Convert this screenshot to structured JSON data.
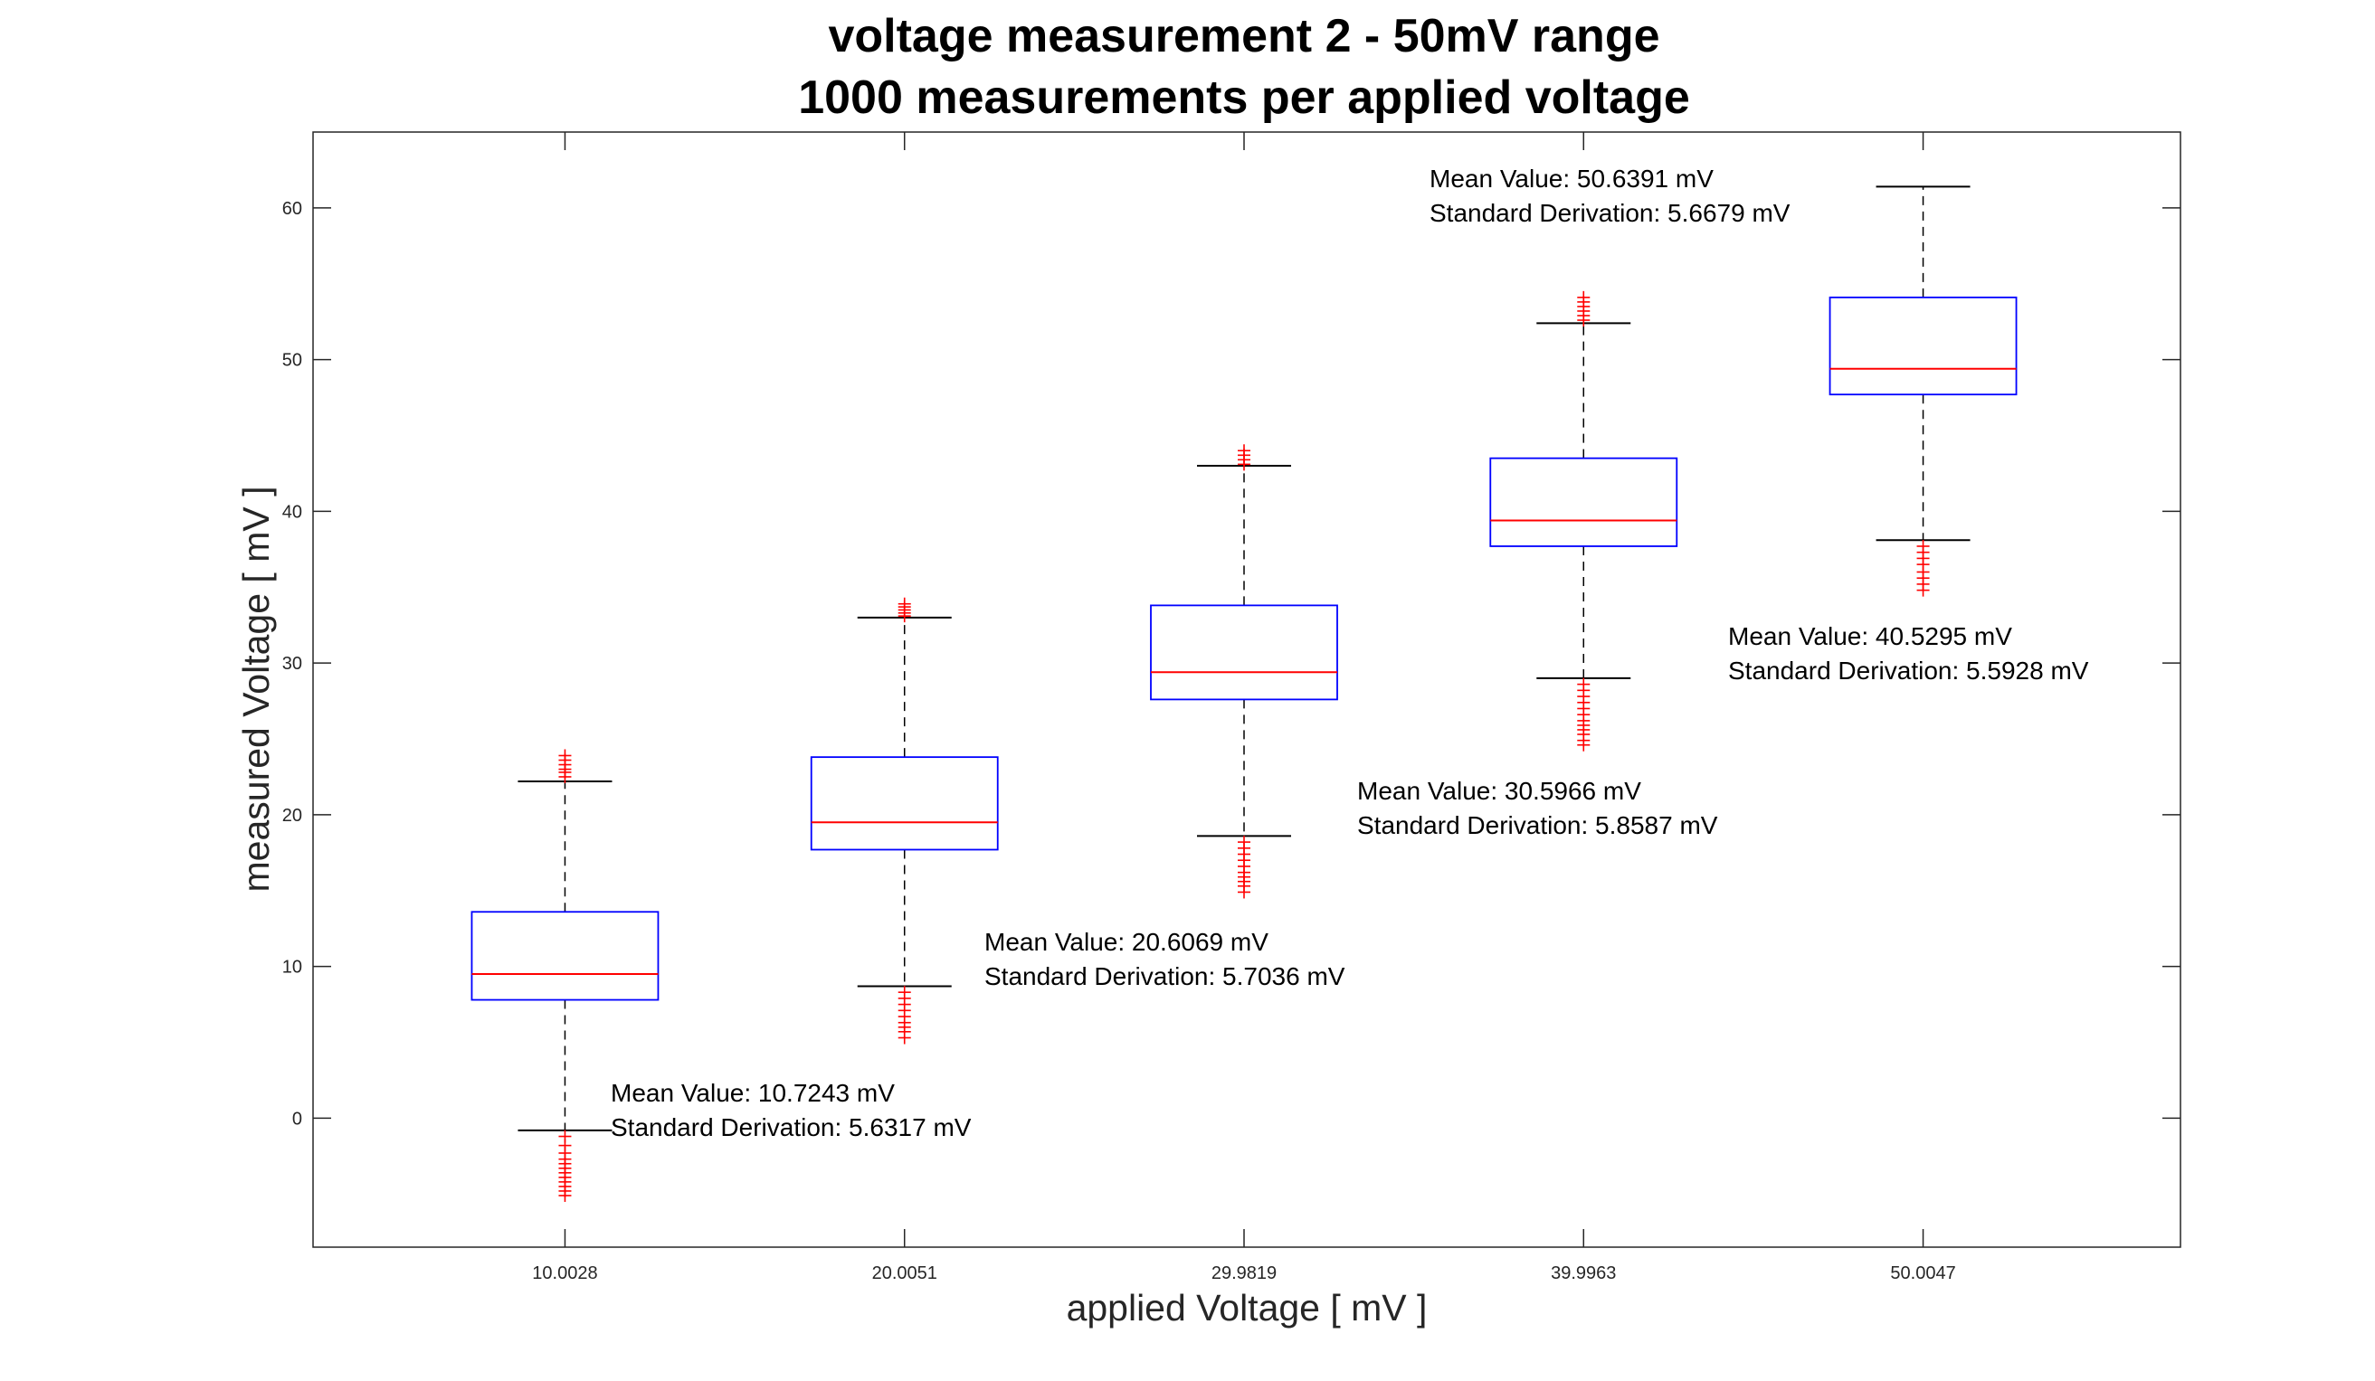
{
  "chart_data": {
    "type": "box",
    "title": [
      "voltage measurement 2 - 50mV range",
      "1000 measurements per applied voltage"
    ],
    "xlabel": "applied Voltage [ mV ]",
    "ylabel": "measured Voltage [ mV ]",
    "ylim": [
      -8.5,
      65
    ],
    "yticks": [
      0,
      10,
      20,
      30,
      40,
      50,
      60
    ],
    "grid": false,
    "colors": {
      "box": "#0000ff",
      "median": "#ff0000",
      "whisker": "#000000",
      "outlier": "#ff0000",
      "axis": "#262626"
    },
    "categories": [
      "10.0028",
      "20.0051",
      "29.9819",
      "39.9963",
      "50.0047"
    ],
    "boxes": [
      {
        "whisker_low": -0.8,
        "q1": 7.8,
        "median": 9.5,
        "q3": 13.6,
        "whisker_high": 22.2,
        "outliers_low": [
          -1.2,
          -1.8,
          -2.3,
          -2.7,
          -3.0,
          -3.3,
          -3.6,
          -3.9,
          -4.2,
          -4.5,
          -4.8,
          -5.1
        ],
        "outliers_high": [
          22.5,
          22.8,
          23.0,
          23.3,
          23.6,
          23.9
        ]
      },
      {
        "whisker_low": 8.7,
        "q1": 17.7,
        "median": 19.5,
        "q3": 23.8,
        "whisker_high": 33.0,
        "outliers_low": [
          8.3,
          7.9,
          7.5,
          7.1,
          6.7,
          6.3,
          6.0,
          5.7,
          5.3
        ],
        "outliers_high": [
          33.1,
          33.3,
          33.5,
          33.7,
          33.9
        ]
      },
      {
        "whisker_low": 18.6,
        "q1": 27.6,
        "median": 29.4,
        "q3": 33.8,
        "whisker_high": 43.0,
        "outliers_low": [
          18.2,
          17.8,
          17.4,
          17.0,
          16.6,
          16.2,
          15.9,
          15.6,
          15.3,
          14.9
        ],
        "outliers_high": [
          43.1,
          43.4,
          43.7,
          44.0
        ]
      },
      {
        "whisker_low": 29.0,
        "q1": 37.7,
        "median": 39.4,
        "q3": 43.5,
        "whisker_high": 52.4,
        "outliers_low": [
          28.6,
          28.2,
          27.8,
          27.4,
          27.0,
          26.6,
          26.2,
          25.9,
          25.6,
          25.3,
          24.9,
          24.6
        ],
        "outliers_high": [
          52.6,
          52.9,
          53.2,
          53.5,
          53.8,
          54.1
        ]
      },
      {
        "whisker_low": 38.1,
        "q1": 47.7,
        "median": 49.4,
        "q3": 54.1,
        "whisker_high": 61.4,
        "outliers_low": [
          37.7,
          37.3,
          36.9,
          36.5,
          36.0,
          35.6,
          35.2,
          34.8
        ],
        "outliers_high": []
      }
    ],
    "annotations": [
      {
        "category": "10.0028",
        "mean_label": "Mean Value:  10.7243 mV",
        "std_label": "Standard Derivation:  5.6317 mV"
      },
      {
        "category": "20.0051",
        "mean_label": "Mean Value:  20.6069 mV",
        "std_label": "Standard Derivation:  5.7036 mV"
      },
      {
        "category": "29.9819",
        "mean_label": "Mean Value:  30.5966 mV",
        "std_label": "Standard Derivation:  5.8587 mV"
      },
      {
        "category": "39.9963",
        "mean_label": "Mean Value:  40.5295 mV",
        "std_label": "Standard Derivation:  5.5928 mV"
      },
      {
        "category": "50.0047",
        "mean_label": "Mean Value:  50.6391 mV",
        "std_label": "Standard Derivation:  5.6679 mV"
      }
    ]
  }
}
